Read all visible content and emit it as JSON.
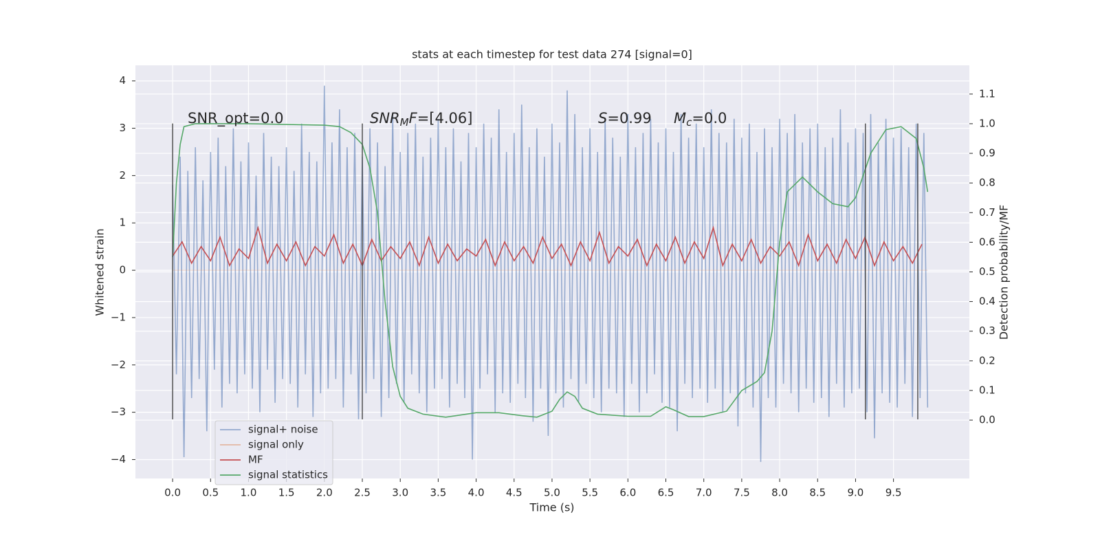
{
  "chart_data": {
    "type": "line",
    "title": "stats at each timestep for test data 274 [signal=0]",
    "xlabel": "Time (s)",
    "ylabel": "Whitened strain",
    "y2label": "Detection probability/MF",
    "xlim": [
      -0.49,
      10.5
    ],
    "ylim": [
      -4.4,
      4.33
    ],
    "y2lim": [
      -0.197,
      1.197
    ],
    "xticks": [
      {
        "value": 0,
        "label": "0.0"
      },
      {
        "value": 0.5,
        "label": "0.5"
      },
      {
        "value": 1,
        "label": "1.0"
      },
      {
        "value": 1.5,
        "label": "1.5"
      },
      {
        "value": 2,
        "label": "2.0"
      },
      {
        "value": 2.5,
        "label": "2.5"
      },
      {
        "value": 3,
        "label": "3.0"
      },
      {
        "value": 3.5,
        "label": "3.5"
      },
      {
        "value": 4,
        "label": "4.0"
      },
      {
        "value": 4.5,
        "label": "4.5"
      },
      {
        "value": 5,
        "label": "5.0"
      },
      {
        "value": 5.5,
        "label": "5.5"
      },
      {
        "value": 6,
        "label": "6.0"
      },
      {
        "value": 6.5,
        "label": "6.5"
      },
      {
        "value": 7,
        "label": "7.0"
      },
      {
        "value": 7.5,
        "label": "7.5"
      },
      {
        "value": 8,
        "label": "8.0"
      },
      {
        "value": 8.5,
        "label": "8.5"
      },
      {
        "value": 9,
        "label": "9.0"
      },
      {
        "value": 9.5,
        "label": "9.5"
      }
    ],
    "yticks": [
      {
        "value": -4,
        "label": "−4"
      },
      {
        "value": -3,
        "label": "−3"
      },
      {
        "value": -2,
        "label": "−2"
      },
      {
        "value": -1,
        "label": "−1"
      },
      0,
      1,
      2,
      3,
      4
    ],
    "y2ticks": [
      {
        "value": 0,
        "label": "0.0"
      },
      {
        "value": 0.1,
        "label": "0.1"
      },
      {
        "value": 0.2,
        "label": "0.2"
      },
      {
        "value": 0.3,
        "label": "0.3"
      },
      {
        "value": 0.4,
        "label": "0.4"
      },
      {
        "value": 0.5,
        "label": "0.5"
      },
      {
        "value": 0.6,
        "label": "0.6"
      },
      {
        "value": 0.7,
        "label": "0.7"
      },
      {
        "value": 0.8,
        "label": "0.8"
      },
      {
        "value": 0.9,
        "label": "0.9"
      },
      {
        "value": 1,
        "label": "1.0"
      },
      {
        "value": 1.1,
        "label": "1.1"
      }
    ],
    "grid": true,
    "legend": "lower left",
    "vlines": [
      0,
      2.5,
      9.13,
      9.82
    ],
    "vline_range": [
      -3.15,
      3.1
    ],
    "annotations": [
      {
        "parts": [
          {
            "text": "SNR_opt=0.0"
          }
        ]
      },
      {
        "parts": [
          {
            "text": "SNR",
            "style": "italic"
          },
          {
            "text": "M",
            "style": "sub"
          },
          {
            "text": "F",
            "style": "italic"
          },
          {
            "text": "=[4.06]"
          }
        ]
      },
      {
        "parts": [
          {
            "text": "S",
            "style": "italic"
          },
          {
            "text": "=0.99"
          }
        ]
      },
      {
        "parts": [
          {
            "text": "M",
            "style": "italic"
          },
          {
            "text": "c",
            "style": "sub"
          },
          {
            "text": "=0.0"
          }
        ]
      }
    ],
    "series": [
      {
        "name": "signal+ noise",
        "color": "#4c72b0",
        "alpha": 0.55,
        "x": [
          0,
          0.05,
          0.1,
          0.15,
          0.2,
          0.25,
          0.3,
          0.35,
          0.4,
          0.45,
          0.5,
          0.55,
          0.6,
          0.65,
          0.7,
          0.75,
          0.8,
          0.85,
          0.9,
          0.95,
          1,
          1.05,
          1.1,
          1.15,
          1.2,
          1.25,
          1.3,
          1.35,
          1.4,
          1.45,
          1.5,
          1.55,
          1.6,
          1.65,
          1.7,
          1.75,
          1.8,
          1.85,
          1.9,
          1.95,
          2,
          2.05,
          2.1,
          2.15,
          2.2,
          2.25,
          2.3,
          2.35,
          2.4,
          2.45,
          2.5,
          2.55,
          2.6,
          2.65,
          2.7,
          2.75,
          2.8,
          2.85,
          2.9,
          2.95,
          3,
          3.05,
          3.1,
          3.15,
          3.2,
          3.25,
          3.3,
          3.35,
          3.4,
          3.45,
          3.5,
          3.55,
          3.6,
          3.65,
          3.7,
          3.75,
          3.8,
          3.85,
          3.9,
          3.95,
          4,
          4.05,
          4.1,
          4.15,
          4.2,
          4.25,
          4.3,
          4.35,
          4.4,
          4.45,
          4.5,
          4.55,
          4.6,
          4.65,
          4.7,
          4.75,
          4.8,
          4.85,
          4.9,
          4.95,
          5,
          5.05,
          5.1,
          5.15,
          5.2,
          5.25,
          5.3,
          5.35,
          5.4,
          5.45,
          5.5,
          5.55,
          5.6,
          5.65,
          5.7,
          5.75,
          5.8,
          5.85,
          5.9,
          5.95,
          6,
          6.05,
          6.1,
          6.15,
          6.2,
          6.25,
          6.3,
          6.35,
          6.4,
          6.45,
          6.5,
          6.55,
          6.6,
          6.65,
          6.7,
          6.75,
          6.8,
          6.85,
          6.9,
          6.95,
          7,
          7.05,
          7.1,
          7.15,
          7.2,
          7.25,
          7.3,
          7.35,
          7.4,
          7.45,
          7.5,
          7.55,
          7.6,
          7.65,
          7.7,
          7.75,
          7.8,
          7.85,
          7.9,
          7.95,
          8,
          8.05,
          8.1,
          8.15,
          8.2,
          8.25,
          8.3,
          8.35,
          8.4,
          8.45,
          8.5,
          8.55,
          8.6,
          8.65,
          8.7,
          8.75,
          8.8,
          8.85,
          8.9,
          8.95,
          9,
          9.05,
          9.1,
          9.15,
          9.2,
          9.25,
          9.3,
          9.35,
          9.4,
          9.45,
          9.5,
          9.55,
          9.6,
          9.65,
          9.7,
          9.75,
          9.8,
          9.85,
          9.9,
          9.95
        ],
        "values": [
          1.8,
          -2.2,
          2.4,
          -3.95,
          2.1,
          -2.7,
          2.6,
          -2.3,
          1.9,
          -3.4,
          2.5,
          -2.1,
          2.8,
          -2.9,
          2.2,
          -2.4,
          3.0,
          -2.6,
          2.3,
          -2.2,
          2.7,
          -2.5,
          2.0,
          -3.0,
          2.9,
          -2.1,
          2.4,
          -2.8,
          2.2,
          -2.3,
          2.6,
          -2.4,
          2.1,
          -2.9,
          3.1,
          -2.2,
          2.5,
          -3.1,
          2.3,
          -2.6,
          3.9,
          -2.5,
          2.7,
          -2.3,
          3.4,
          -2.9,
          2.6,
          -2.2,
          2.9,
          -3.15,
          2.4,
          -2.6,
          3.0,
          -2.3,
          2.7,
          -3.1,
          2.2,
          -2.7,
          3.3,
          -2.4,
          2.5,
          -2.8,
          2.9,
          -2.2,
          3.1,
          -2.6,
          2.4,
          -3.0,
          2.8,
          -2.5,
          3.2,
          -2.3,
          2.6,
          -2.9,
          3.0,
          -2.4,
          2.3,
          -2.7,
          2.9,
          -4.0,
          2.6,
          -2.5,
          3.1,
          -2.2,
          2.8,
          -3.0,
          3.4,
          -2.6,
          2.5,
          -2.8,
          2.9,
          -2.4,
          3.5,
          -2.7,
          2.6,
          -3.2,
          3.0,
          -2.5,
          2.4,
          -3.5,
          3.1,
          -2.6,
          2.7,
          -2.9,
          3.8,
          -2.3,
          3.3,
          -2.8,
          2.6,
          -2.4,
          3.0,
          -2.7,
          2.5,
          -3.0,
          3.2,
          -2.5,
          2.8,
          -2.6,
          2.4,
          -3.1,
          3.3,
          -2.4,
          2.6,
          -3.0,
          2.9,
          -2.6,
          3.2,
          -2.2,
          2.7,
          -2.8,
          3.0,
          -2.9,
          2.5,
          -3.4,
          3.3,
          -2.4,
          2.8,
          -2.7,
          3.1,
          -2.5,
          2.6,
          -2.8,
          3.4,
          -2.5,
          2.9,
          -3.0,
          2.7,
          -2.6,
          3.2,
          -3.3,
          2.8,
          -2.6,
          3.1,
          -2.9,
          2.5,
          -4.05,
          3.0,
          -2.7,
          2.6,
          -2.9,
          3.2,
          -2.4,
          2.9,
          -2.6,
          3.3,
          -3.0,
          2.7,
          -2.5,
          3.0,
          -2.8,
          3.1,
          -2.7,
          2.6,
          -3.1,
          2.8,
          -2.4,
          3.4,
          -2.9,
          2.7,
          -2.6,
          3.0,
          -2.5,
          2.9,
          -3.0,
          3.3,
          -3.55,
          2.7,
          -2.6,
          3.2,
          -2.8,
          2.8,
          -2.9,
          3.0,
          -2.4,
          2.6,
          -3.1,
          3.1,
          -2.7,
          2.9,
          -2.9
        ]
      },
      {
        "name": "signal only",
        "color": "#dd8452",
        "alpha": 0.2,
        "x": [
          0,
          9.95
        ],
        "values": [
          0,
          0
        ]
      },
      {
        "name": "MF",
        "color": "#c44e52",
        "alpha": 1,
        "x": [
          0,
          0.125,
          0.25,
          0.375,
          0.5,
          0.625,
          0.75,
          0.875,
          1,
          1.125,
          1.25,
          1.375,
          1.5,
          1.625,
          1.75,
          1.875,
          2,
          2.125,
          2.25,
          2.375,
          2.5,
          2.625,
          2.75,
          2.875,
          3,
          3.125,
          3.25,
          3.375,
          3.5,
          3.625,
          3.75,
          3.875,
          4,
          4.125,
          4.25,
          4.375,
          4.5,
          4.625,
          4.75,
          4.875,
          5,
          5.125,
          5.25,
          5.375,
          5.5,
          5.625,
          5.75,
          5.875,
          6,
          6.125,
          6.25,
          6.375,
          6.5,
          6.625,
          6.75,
          6.875,
          7,
          7.125,
          7.25,
          7.375,
          7.5,
          7.625,
          7.75,
          7.875,
          8,
          8.125,
          8.25,
          8.375,
          8.5,
          8.625,
          8.75,
          8.875,
          9,
          9.125,
          9.25,
          9.375,
          9.5,
          9.625,
          9.75,
          9.875
        ],
        "values": [
          0.3,
          0.6,
          0.15,
          0.5,
          0.2,
          0.7,
          0.1,
          0.45,
          0.25,
          0.9,
          0.15,
          0.55,
          0.2,
          0.6,
          0.1,
          0.5,
          0.3,
          0.75,
          0.15,
          0.55,
          0.1,
          0.65,
          0.2,
          0.5,
          0.25,
          0.6,
          0.1,
          0.7,
          0.15,
          0.55,
          0.2,
          0.45,
          0.3,
          0.65,
          0.1,
          0.6,
          0.2,
          0.5,
          0.15,
          0.7,
          0.25,
          0.55,
          0.1,
          0.6,
          0.2,
          0.8,
          0.15,
          0.5,
          0.3,
          0.65,
          0.1,
          0.55,
          0.2,
          0.7,
          0.15,
          0.6,
          0.25,
          0.9,
          0.1,
          0.55,
          0.2,
          0.65,
          0.15,
          0.5,
          0.3,
          0.6,
          0.1,
          0.75,
          0.2,
          0.55,
          0.15,
          0.65,
          0.25,
          0.7,
          0.1,
          0.6,
          0.2,
          0.5,
          0.15,
          0.55
        ]
      },
      {
        "name": "signal statistics",
        "color": "#55a868",
        "alpha": 1,
        "axis": "y2",
        "x": [
          0,
          0.05,
          0.1,
          0.15,
          0.3,
          1,
          2,
          2.2,
          2.35,
          2.5,
          2.6,
          2.7,
          2.8,
          2.9,
          3,
          3.1,
          3.3,
          3.6,
          4,
          4.3,
          4.6,
          4.8,
          5,
          5.1,
          5.2,
          5.3,
          5.4,
          5.6,
          6,
          6.3,
          6.5,
          6.6,
          6.8,
          7,
          7.3,
          7.5,
          7.7,
          7.8,
          7.9,
          8,
          8.1,
          8.3,
          8.5,
          8.7,
          8.9,
          9,
          9.2,
          9.4,
          9.6,
          9.8,
          9.9,
          9.95
        ],
        "values": [
          0.55,
          0.8,
          0.93,
          0.99,
          1.0,
          1.0,
          0.995,
          0.99,
          0.97,
          0.93,
          0.85,
          0.7,
          0.4,
          0.18,
          0.08,
          0.04,
          0.02,
          0.01,
          0.025,
          0.025,
          0.015,
          0.01,
          0.03,
          0.07,
          0.095,
          0.08,
          0.04,
          0.02,
          0.013,
          0.013,
          0.045,
          0.035,
          0.012,
          0.012,
          0.03,
          0.1,
          0.13,
          0.16,
          0.3,
          0.6,
          0.77,
          0.82,
          0.77,
          0.73,
          0.72,
          0.75,
          0.9,
          0.98,
          0.99,
          0.95,
          0.85,
          0.77
        ]
      }
    ]
  }
}
